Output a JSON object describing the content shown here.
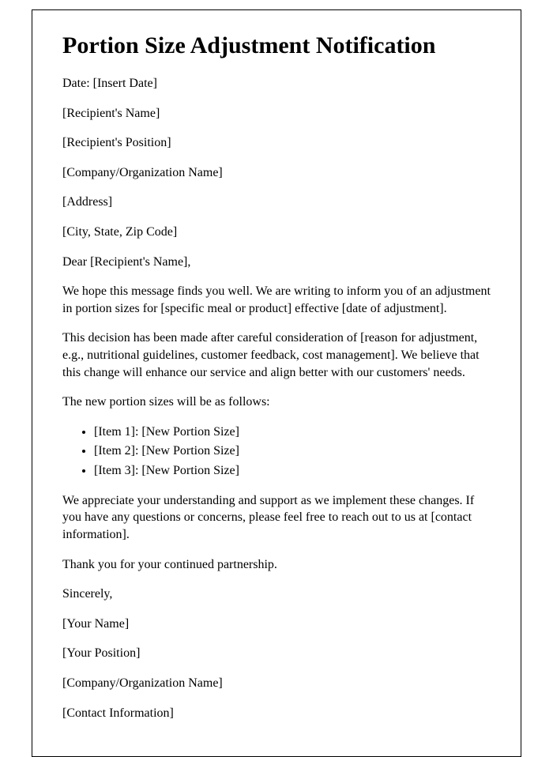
{
  "title": "Portion Size Adjustment Notification",
  "header": {
    "date_line": "Date: [Insert Date]",
    "recipient_name": "[Recipient's Name]",
    "recipient_position": "[Recipient's Position]",
    "company_name": "[Company/Organization Name]",
    "address": "[Address]",
    "city_state_zip": "[City, State, Zip Code]"
  },
  "salutation": "Dear [Recipient's Name],",
  "paragraphs": {
    "intro": "We hope this message finds you well. We are writing to inform you of an adjustment in portion sizes for [specific meal or product] effective [date of adjustment].",
    "reason": "This decision has been made after careful consideration of [reason for adjustment, e.g., nutritional guidelines, customer feedback, cost management]. We believe that this change will enhance our service and align better with our customers' needs.",
    "list_intro": "The new portion sizes will be as follows:",
    "closing": "We appreciate your understanding and support as we implement these changes. If you have any questions or concerns, please feel free to reach out to us at [contact information].",
    "thanks": "Thank you for your continued partnership."
  },
  "items": {
    "item1": "[Item 1]: [New Portion Size]",
    "item2": "[Item 2]: [New Portion Size]",
    "item3": "[Item 3]: [New Portion Size]"
  },
  "signature": {
    "sincerely": "Sincerely,",
    "your_name": "[Your Name]",
    "your_position": "[Your Position]",
    "your_company": "[Company/Organization Name]",
    "contact_info": "[Contact Information]"
  },
  "styling": {
    "border_color": "#000000",
    "background_color": "#ffffff",
    "text_color": "#000000",
    "font_family": "Times New Roman",
    "title_fontsize": 30,
    "body_fontsize": 16
  }
}
